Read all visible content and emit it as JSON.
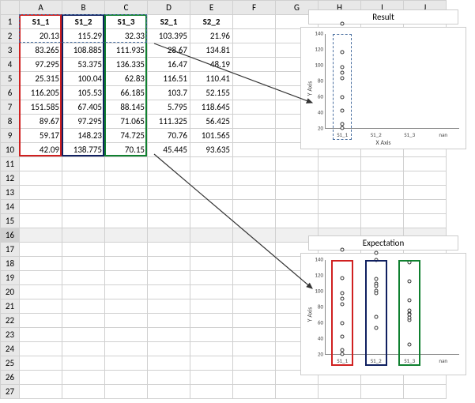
{
  "columns": [
    "A",
    "B",
    "C",
    "D",
    "E",
    "F",
    "G",
    "H",
    "I",
    "J"
  ],
  "row_count": 27,
  "headers": [
    "S1_1",
    "S1_2",
    "S1_3",
    "S2_1",
    "S2_2"
  ],
  "data": [
    [
      20.13,
      115.29,
      32.33,
      103.395,
      21.96
    ],
    [
      83.265,
      108.885,
      111.935,
      28.67,
      134.81
    ],
    [
      97.295,
      53.375,
      136.335,
      16.47,
      48.19
    ],
    [
      25.315,
      100.04,
      62.83,
      116.51,
      110.41
    ],
    [
      116.205,
      105.53,
      66.185,
      103.7,
      52.155
    ],
    [
      151.585,
      67.405,
      88.145,
      5.795,
      118.645
    ],
    [
      89.67,
      97.295,
      71.065,
      111.325,
      56.425
    ],
    [
      59.17,
      148.23,
      74.725,
      70.76,
      101.565
    ],
    [
      42.09,
      138.775,
      70.15,
      45.445,
      93.635
    ]
  ],
  "col_colors": [
    "#d02020",
    "#102060",
    "#108030"
  ],
  "charts": {
    "result": {
      "title": "Result",
      "ylabel": "Y Axis",
      "xlabel": "X Axis",
      "xticks": [
        "S1_1",
        "S1_2",
        "S1_3",
        "nan"
      ],
      "ylim": [
        20,
        140
      ],
      "ytick_step": 20
    },
    "expectation": {
      "title": "Expectation",
      "ylabel": "Y Axis",
      "xticks": [
        "S1_1",
        "S1_2",
        "S1_3",
        "nan"
      ],
      "ylim": [
        20,
        140
      ],
      "ytick_step": 20
    }
  }
}
